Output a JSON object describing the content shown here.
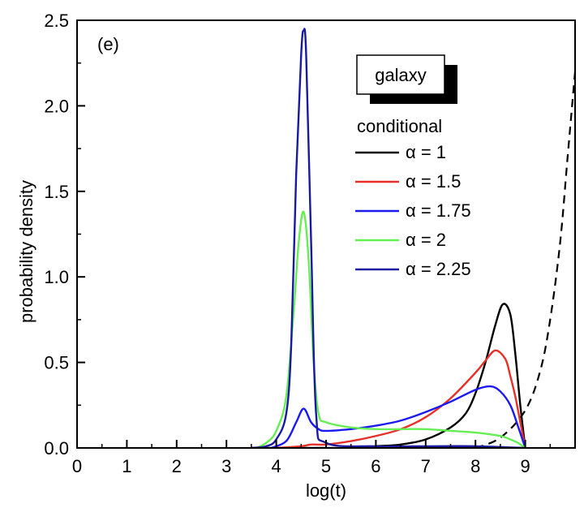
{
  "chart_data": {
    "type": "line",
    "panel_label": "(e)",
    "xlabel": "log(t)",
    "ylabel": "probability density",
    "xlim": [
      0,
      10
    ],
    "ylim": [
      0,
      2.5
    ],
    "x_ticks": [
      0,
      1,
      2,
      3,
      4,
      5,
      6,
      7,
      8,
      9
    ],
    "x_tick_labels": [
      "0",
      "1",
      "2",
      "3",
      "4",
      "5",
      "6",
      "7",
      "8",
      "9"
    ],
    "y_ticks": [
      0,
      0.5,
      1,
      1.5,
      2,
      2.5
    ],
    "y_tick_labels": [
      "0.0",
      "0.5",
      "1.0",
      "1.5",
      "2.0",
      "2.5"
    ],
    "grid": false,
    "badge": "galaxy",
    "legend_title": "conditional",
    "legend_position": "top-right",
    "series": [
      {
        "name": "α = 1",
        "color": "#000000",
        "x": [
          3.5,
          4.0,
          4.5,
          5.0,
          5.5,
          6.0,
          6.5,
          7.0,
          7.5,
          7.8,
          8.0,
          8.2,
          8.4,
          8.55,
          8.7,
          8.8,
          8.9,
          9.0
        ],
        "y": [
          0.0,
          0.0,
          0.0,
          0.0,
          0.0,
          0.01,
          0.02,
          0.05,
          0.12,
          0.2,
          0.32,
          0.5,
          0.72,
          0.84,
          0.78,
          0.55,
          0.25,
          0.0
        ]
      },
      {
        "name": "α = 1.5",
        "color": "#e8302a",
        "x": [
          4.0,
          4.5,
          4.7,
          5.0,
          5.5,
          6.0,
          6.5,
          7.0,
          7.5,
          8.0,
          8.2,
          8.4,
          8.6,
          8.7,
          8.8,
          8.9,
          9.0
        ],
        "y": [
          0.0,
          0.01,
          0.02,
          0.02,
          0.04,
          0.07,
          0.11,
          0.18,
          0.29,
          0.44,
          0.51,
          0.57,
          0.52,
          0.42,
          0.3,
          0.15,
          0.0
        ]
      },
      {
        "name": "α = 1.75",
        "color": "#1a1af0",
        "x": [
          3.9,
          4.2,
          4.4,
          4.55,
          4.7,
          4.85,
          5.0,
          5.5,
          6.0,
          6.5,
          7.0,
          7.5,
          8.0,
          8.3,
          8.5,
          8.7,
          8.85,
          9.0
        ],
        "y": [
          0.0,
          0.04,
          0.15,
          0.23,
          0.15,
          0.11,
          0.1,
          0.11,
          0.13,
          0.16,
          0.21,
          0.27,
          0.34,
          0.36,
          0.33,
          0.25,
          0.13,
          0.0
        ]
      },
      {
        "name": "α = 2",
        "color": "#66ee55",
        "x": [
          3.6,
          3.8,
          4.0,
          4.2,
          4.35,
          4.45,
          4.55,
          4.65,
          4.75,
          4.85,
          5.0,
          5.5,
          6.0,
          6.5,
          7.0,
          7.5,
          8.0,
          8.5,
          8.7,
          8.85,
          9.0
        ],
        "y": [
          0.0,
          0.03,
          0.1,
          0.3,
          0.8,
          1.2,
          1.38,
          1.1,
          0.5,
          0.2,
          0.15,
          0.12,
          0.11,
          0.11,
          0.11,
          0.1,
          0.09,
          0.07,
          0.05,
          0.03,
          0.0
        ]
      },
      {
        "name": "α = 2.25",
        "color": "#1a1aa0",
        "x": [
          3.5,
          3.8,
          4.0,
          4.2,
          4.3,
          4.4,
          4.5,
          4.55,
          4.6,
          4.7,
          4.8,
          5.0,
          6.0,
          7.0,
          8.0,
          9.0
        ],
        "y": [
          0.0,
          0.01,
          0.05,
          0.2,
          0.6,
          1.6,
          2.3,
          2.44,
          2.3,
          1.2,
          0.2,
          0.03,
          0.01,
          0.01,
          0.01,
          0.0
        ]
      }
    ],
    "reference_curve": {
      "style": "dashed",
      "color": "#000000",
      "x": [
        8.0,
        8.5,
        9.0,
        9.3,
        9.5,
        9.7,
        9.85,
        10.0
      ],
      "y": [
        0.0,
        0.06,
        0.22,
        0.45,
        0.75,
        1.2,
        1.7,
        2.2
      ]
    }
  }
}
